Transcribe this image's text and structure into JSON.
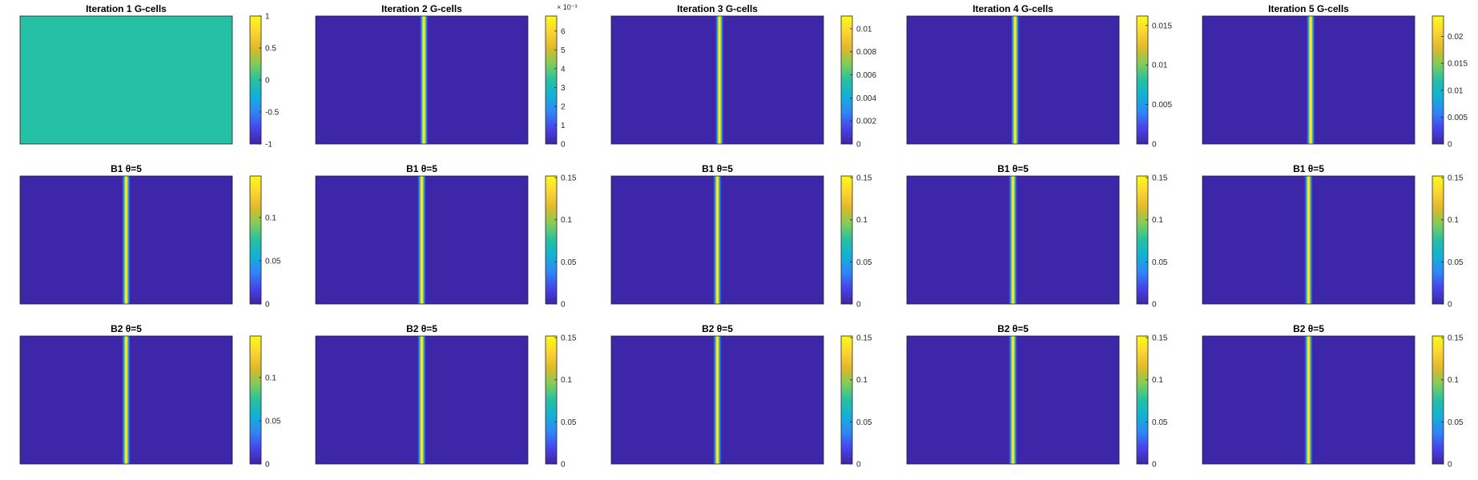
{
  "figure": {
    "layout": "3x5 grid of heatmap panels with colorbars"
  },
  "colors": {
    "colormap": "parula",
    "parula_stops": [
      "#3e26a8",
      "#4744e9",
      "#2e87f7",
      "#12b1d6",
      "#25c0a5",
      "#81cc59",
      "#dfb92a",
      "#fdd434",
      "#f9fb15"
    ],
    "panel_border": "#262626",
    "text": "#262626"
  },
  "chart_data": [
    {
      "type": "heatmap",
      "title": "Iteration 1 G-cells",
      "background_level": 0,
      "stripe": null,
      "colorbar": {
        "clim": [
          -1,
          1
        ],
        "ticks": [
          "1",
          "0.5",
          "0",
          "-0.5",
          "-1"
        ],
        "tick_values": [
          1,
          0.5,
          0,
          -0.5,
          -1
        ],
        "exponent": ""
      }
    },
    {
      "type": "heatmap",
      "title": "Iteration 2 G-cells",
      "background_level": 0,
      "stripe": {
        "x_fraction": 0.51,
        "peak": 0.0068
      },
      "colorbar": {
        "clim": [
          0,
          0.0068
        ],
        "ticks": [
          "6",
          "5",
          "4",
          "3",
          "2",
          "1",
          "0"
        ],
        "tick_values": [
          0.006,
          0.005,
          0.004,
          0.003,
          0.002,
          0.001,
          0
        ],
        "exponent": "× 10⁻³"
      }
    },
    {
      "type": "heatmap",
      "title": "Iteration 3 G-cells",
      "background_level": 0,
      "stripe": {
        "x_fraction": 0.51,
        "peak": 0.0111
      },
      "colorbar": {
        "clim": [
          0,
          0.0111
        ],
        "ticks": [
          "0.01",
          "0.008",
          "0.006",
          "0.004",
          "0.002",
          "0"
        ],
        "tick_values": [
          0.01,
          0.008,
          0.006,
          0.004,
          0.002,
          0
        ],
        "exponent": ""
      }
    },
    {
      "type": "heatmap",
      "title": "Iteration 4 G-cells",
      "background_level": 0,
      "stripe": {
        "x_fraction": 0.51,
        "peak": 0.0162
      },
      "colorbar": {
        "clim": [
          0,
          0.0162
        ],
        "ticks": [
          "0.015",
          "0.01",
          "0.005",
          "0"
        ],
        "tick_values": [
          0.015,
          0.01,
          0.005,
          0
        ],
        "exponent": ""
      }
    },
    {
      "type": "heatmap",
      "title": "Iteration 5 G-cells",
      "background_level": 0,
      "stripe": {
        "x_fraction": 0.51,
        "peak": 0.0238
      },
      "colorbar": {
        "clim": [
          0,
          0.0238
        ],
        "ticks": [
          "0.02",
          "0.015",
          "0.01",
          "0.005",
          "0"
        ],
        "tick_values": [
          0.02,
          0.015,
          0.01,
          0.005,
          0
        ],
        "exponent": ""
      }
    },
    {
      "type": "heatmap",
      "title": "B1 θ=5",
      "background_level": 0,
      "stripe": {
        "x_fraction": 0.5,
        "peak": 0.148
      },
      "colorbar": {
        "clim": [
          0,
          0.148
        ],
        "ticks": [
          "0.1",
          "0.05",
          "0"
        ],
        "tick_values": [
          0.1,
          0.05,
          0
        ],
        "exponent": ""
      }
    },
    {
      "type": "heatmap",
      "title": "B1 θ=5",
      "background_level": 0,
      "stripe": {
        "x_fraction": 0.5,
        "peak": 0.152
      },
      "colorbar": {
        "clim": [
          0,
          0.152
        ],
        "ticks": [
          "0.15",
          "0.1",
          "0.05",
          "0"
        ],
        "tick_values": [
          0.15,
          0.1,
          0.05,
          0
        ],
        "exponent": ""
      }
    },
    {
      "type": "heatmap",
      "title": "B1 θ=5",
      "background_level": 0,
      "stripe": {
        "x_fraction": 0.5,
        "peak": 0.152
      },
      "colorbar": {
        "clim": [
          0,
          0.152
        ],
        "ticks": [
          "0.15",
          "0.1",
          "0.05",
          "0"
        ],
        "tick_values": [
          0.15,
          0.1,
          0.05,
          0
        ],
        "exponent": ""
      }
    },
    {
      "type": "heatmap",
      "title": "B1 θ=5",
      "background_level": 0,
      "stripe": {
        "x_fraction": 0.5,
        "peak": 0.152
      },
      "colorbar": {
        "clim": [
          0,
          0.152
        ],
        "ticks": [
          "0.15",
          "0.1",
          "0.05",
          "0"
        ],
        "tick_values": [
          0.15,
          0.1,
          0.05,
          0
        ],
        "exponent": ""
      }
    },
    {
      "type": "heatmap",
      "title": "B1 θ=5",
      "background_level": 0,
      "stripe": {
        "x_fraction": 0.5,
        "peak": 0.152
      },
      "colorbar": {
        "clim": [
          0,
          0.152
        ],
        "ticks": [
          "0.15",
          "0.1",
          "0.05",
          "0"
        ],
        "tick_values": [
          0.15,
          0.1,
          0.05,
          0
        ],
        "exponent": ""
      }
    },
    {
      "type": "heatmap",
      "title": "B2 θ=5",
      "background_level": 0,
      "stripe": {
        "x_fraction": 0.5,
        "peak": 0.148
      },
      "colorbar": {
        "clim": [
          0,
          0.148
        ],
        "ticks": [
          "0.1",
          "0.05",
          "0"
        ],
        "tick_values": [
          0.1,
          0.05,
          0
        ],
        "exponent": ""
      }
    },
    {
      "type": "heatmap",
      "title": "B2 θ=5",
      "background_level": 0,
      "stripe": {
        "x_fraction": 0.5,
        "peak": 0.152
      },
      "colorbar": {
        "clim": [
          0,
          0.152
        ],
        "ticks": [
          "0.15",
          "0.1",
          "0.05",
          "0"
        ],
        "tick_values": [
          0.15,
          0.1,
          0.05,
          0
        ],
        "exponent": ""
      }
    },
    {
      "type": "heatmap",
      "title": "B2 θ=5",
      "background_level": 0,
      "stripe": {
        "x_fraction": 0.5,
        "peak": 0.152
      },
      "colorbar": {
        "clim": [
          0,
          0.152
        ],
        "ticks": [
          "0.15",
          "0.1",
          "0.05",
          "0"
        ],
        "tick_values": [
          0.15,
          0.1,
          0.05,
          0
        ],
        "exponent": ""
      }
    },
    {
      "type": "heatmap",
      "title": "B2 θ=5",
      "background_level": 0,
      "stripe": {
        "x_fraction": 0.5,
        "peak": 0.152
      },
      "colorbar": {
        "clim": [
          0,
          0.152
        ],
        "ticks": [
          "0.15",
          "0.1",
          "0.05",
          "0"
        ],
        "tick_values": [
          0.15,
          0.1,
          0.05,
          0
        ],
        "exponent": ""
      }
    },
    {
      "type": "heatmap",
      "title": "B2 θ=5",
      "background_level": 0,
      "stripe": {
        "x_fraction": 0.5,
        "peak": 0.152
      },
      "colorbar": {
        "clim": [
          0,
          0.152
        ],
        "ticks": [
          "0.15",
          "0.1",
          "0.05",
          "0"
        ],
        "tick_values": [
          0.15,
          0.1,
          0.05,
          0
        ],
        "exponent": ""
      }
    }
  ]
}
